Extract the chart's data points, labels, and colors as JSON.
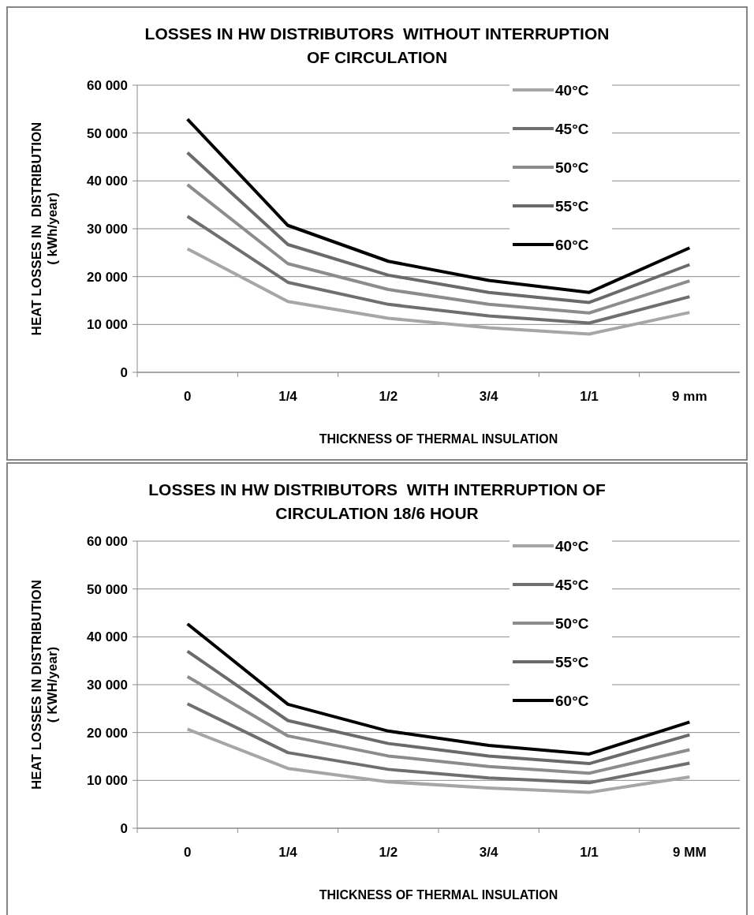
{
  "chart_data": [
    {
      "type": "line",
      "title": "LOSSES IN HW DISTRIBUTORS  WITHOUT INTERRUPTION OF CIRCULATION",
      "xlabel": "THICKNESS OF THERMAL INSULATION",
      "ylabel": "HEAT LOSSES IN  DISTRIBUTION ( kWh/year)",
      "categories": [
        "0",
        "1/4",
        "1/2",
        "3/4",
        "1/1",
        "9 mm"
      ],
      "ylim": [
        0,
        60000
      ],
      "yticks": [
        {
          "value": 0,
          "label": "0"
        },
        {
          "value": 10000,
          "label": "10 000"
        },
        {
          "value": 20000,
          "label": "20 000"
        },
        {
          "value": 30000,
          "label": "30 000"
        },
        {
          "value": 40000,
          "label": "40 000"
        },
        {
          "value": 50000,
          "label": "50 000"
        },
        {
          "value": 60000,
          "label": "60 000"
        }
      ],
      "grid": "y",
      "legend": "top right",
      "marker": "none",
      "line_style": "solid",
      "series": [
        {
          "name": "40°C",
          "color": "#a6a6a6",
          "values": [
            25800,
            14800,
            11300,
            9300,
            8000,
            12500
          ]
        },
        {
          "name": "45°C",
          "color": "#6f6f6f",
          "values": [
            32600,
            18800,
            14200,
            11800,
            10300,
            15800
          ]
        },
        {
          "name": "50°C",
          "color": "#8c8c8c",
          "values": [
            39200,
            22700,
            17300,
            14200,
            12400,
            19100
          ]
        },
        {
          "name": "55°C",
          "color": "#6a6a6a",
          "values": [
            45900,
            26700,
            20300,
            16700,
            14600,
            22500
          ]
        },
        {
          "name": "60°C",
          "color": "#000000",
          "values": [
            52900,
            30700,
            23200,
            19200,
            16700,
            26000
          ]
        }
      ]
    },
    {
      "type": "line",
      "title": "LOSSES IN HW DISTRIBUTORS  WITH INTERRUPTION OF CIRCULATION 18/6 HOUR",
      "xlabel": "THICKNESS OF THERMAL INSULATION",
      "ylabel": "HEAT LOSSES IN DISTRIBUTION ( KWH/year)",
      "categories": [
        "0",
        "1/4",
        "1/2",
        "3/4",
        "1/1",
        "9 MM"
      ],
      "ylim": [
        0,
        60000
      ],
      "yticks": [
        {
          "value": 0,
          "label": "0"
        },
        {
          "value": 10000,
          "label": "10 000"
        },
        {
          "value": 20000,
          "label": "20 000"
        },
        {
          "value": 30000,
          "label": "30 000"
        },
        {
          "value": 40000,
          "label": "40 000"
        },
        {
          "value": 50000,
          "label": "50 000"
        },
        {
          "value": 60000,
          "label": "60 000"
        }
      ],
      "grid": "y",
      "legend": "top right",
      "marker": "none",
      "line_style": "solid",
      "series": [
        {
          "name": "40°C",
          "color": "#a6a6a6",
          "values": [
            20700,
            12500,
            9700,
            8400,
            7500,
            10700
          ]
        },
        {
          "name": "45°C",
          "color": "#6f6f6f",
          "values": [
            26000,
            15800,
            12300,
            10500,
            9500,
            13600
          ]
        },
        {
          "name": "50°C",
          "color": "#8c8c8c",
          "values": [
            31700,
            19300,
            15100,
            12900,
            11500,
            16400
          ]
        },
        {
          "name": "55°C",
          "color": "#6a6a6a",
          "values": [
            37000,
            22500,
            17700,
            15100,
            13500,
            19500
          ]
        },
        {
          "name": "60°C",
          "color": "#000000",
          "values": [
            42700,
            25900,
            20300,
            17300,
            15500,
            22200
          ]
        }
      ]
    }
  ]
}
